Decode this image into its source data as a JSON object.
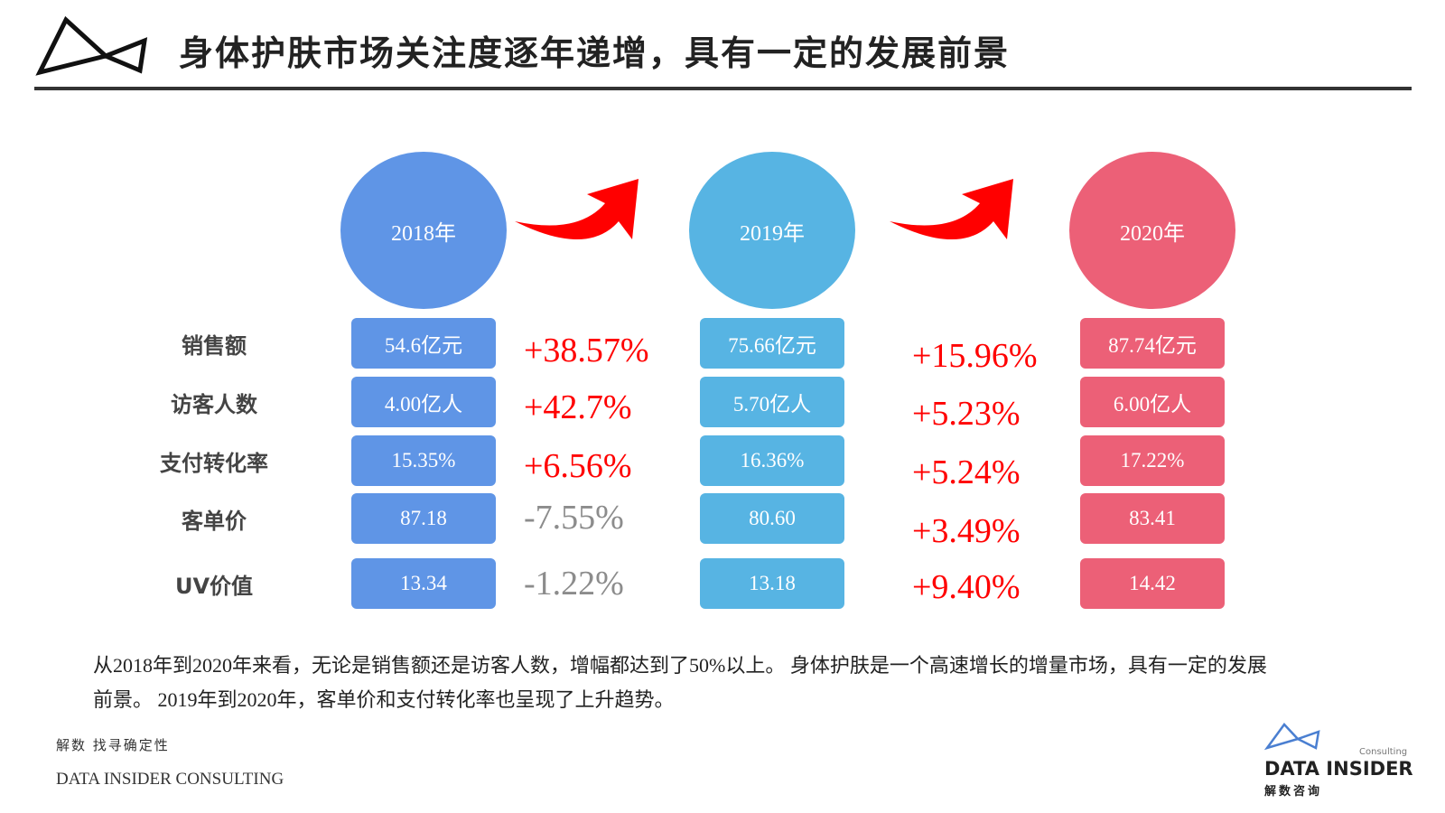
{
  "header": {
    "title": "身体护肤市场关注度逐年递增，具有一定的发展前景"
  },
  "metrics": [
    "销售额",
    "访客人数",
    "支付转化率",
    "客单价",
    "UV价值"
  ],
  "years": [
    {
      "label": "2018年",
      "color": "#5f95e6",
      "values": [
        "54.6亿元",
        "4.00亿人",
        "15.35%",
        "87.18",
        "13.34"
      ]
    },
    {
      "label": "2019年",
      "color": "#57b4e3",
      "values": [
        "75.66亿元",
        "5.70亿人",
        "16.36%",
        "80.60",
        "13.18"
      ]
    },
    {
      "label": "2020年",
      "color": "#ec6077",
      "values": [
        "87.74亿元",
        "6.00亿人",
        "17.22%",
        "83.41",
        "14.42"
      ]
    }
  ],
  "changes": [
    [
      "+38.57%",
      "+42.7%",
      "+6.56%",
      "-7.55%",
      "-1.22%"
    ],
    [
      "+15.96%",
      "+5.23%",
      "+5.24%",
      "+3.49%",
      "+9.40%"
    ]
  ],
  "summary": "从2018年到2020年来看，无论是销售额还是访客人数，增幅都达到了50%以上。 身体护肤是一个高速增长的增量市场，具有一定的发展前景。 2019年到2020年，客单价和支付转化率也呈现了上升趋势。",
  "footer": {
    "slogan": "解数 找寻确定性",
    "company": "DATA INSIDER CONSULTING"
  },
  "logo": {
    "name": "DATA INSIDER",
    "tag": "Consulting",
    "cn": "解数咨询"
  }
}
